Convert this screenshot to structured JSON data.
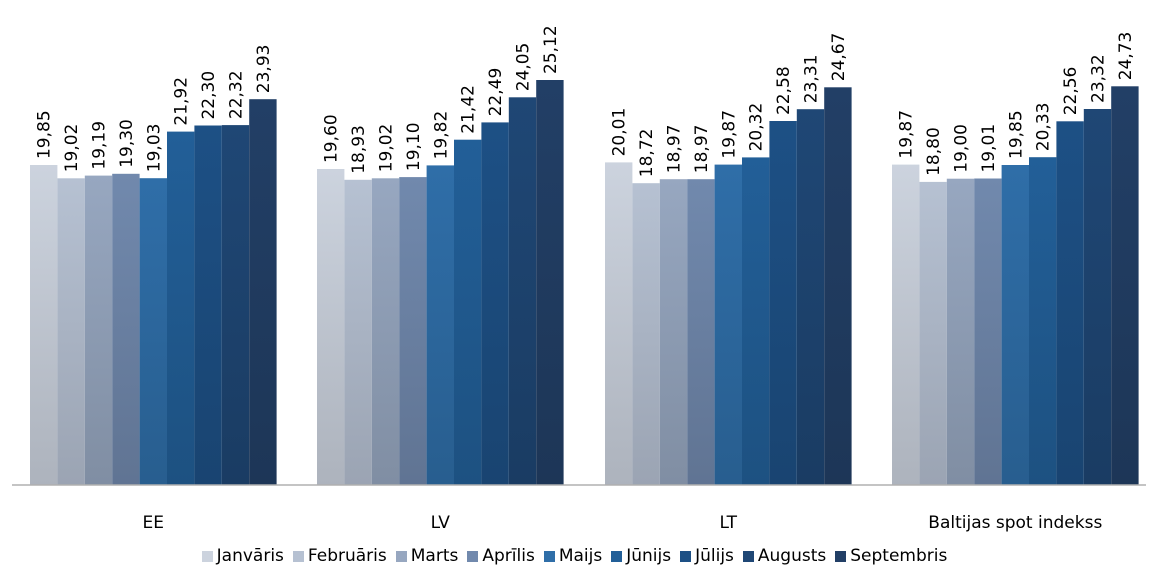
{
  "chart_data": {
    "type": "bar",
    "title": "",
    "xlabel": "",
    "ylabel": "",
    "ylim": [
      0,
      25.12
    ],
    "grid": false,
    "legend_position": "bottom",
    "categories": [
      "EE",
      "LV",
      "LT",
      "Baltijas spot indekss"
    ],
    "series": [
      {
        "name": "Janvāris",
        "color": "#ccd3de",
        "values": [
          19.85,
          19.6,
          20.01,
          19.87
        ],
        "labels": [
          "19,85",
          "19,60",
          "20,01",
          "19,87"
        ]
      },
      {
        "name": "Februāris",
        "color": "#b6c1d2",
        "values": [
          19.02,
          18.93,
          18.72,
          18.8
        ],
        "labels": [
          "19,02",
          "18,93",
          "18,72",
          "18,80"
        ]
      },
      {
        "name": "Marts",
        "color": "#97a7c0",
        "values": [
          19.19,
          19.02,
          18.97,
          19.0
        ],
        "labels": [
          "19,19",
          "19,02",
          "18,97",
          "19,00"
        ]
      },
      {
        "name": "Aprīlis",
        "color": "#7189ad",
        "values": [
          19.3,
          19.1,
          18.97,
          19.01
        ],
        "labels": [
          "19,30",
          "19,10",
          "18,97",
          "19,01"
        ]
      },
      {
        "name": "Maijs",
        "color": "#2f6ea8",
        "values": [
          19.03,
          19.82,
          19.87,
          19.85
        ],
        "labels": [
          "19,03",
          "19,82",
          "19,87",
          "19,85"
        ]
      },
      {
        "name": "Jūnijs",
        "color": "#225f98",
        "values": [
          21.92,
          21.42,
          20.32,
          20.33
        ],
        "labels": [
          "21,92",
          "21,42",
          "20,32",
          "20,33"
        ]
      },
      {
        "name": "Jūlijs",
        "color": "#1d5085",
        "values": [
          22.3,
          22.49,
          22.58,
          22.56
        ],
        "labels": [
          "22,30",
          "22,49",
          "22,58",
          "22,56"
        ]
      },
      {
        "name": "Augusts",
        "color": "#1f4775",
        "values": [
          22.32,
          24.05,
          23.31,
          23.32
        ],
        "labels": [
          "22,32",
          "24,05",
          "23,31",
          "23,32"
        ]
      },
      {
        "name": "Septembris",
        "color": "#223f66",
        "values": [
          23.93,
          25.12,
          24.67,
          24.73
        ],
        "labels": [
          "23,93",
          "25,12",
          "24,67",
          "24,73"
        ]
      }
    ]
  }
}
